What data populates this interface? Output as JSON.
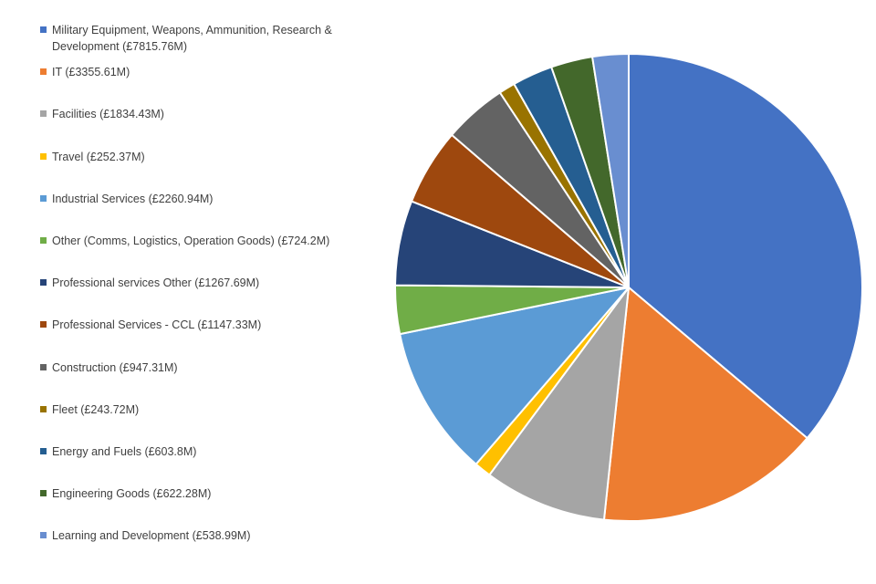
{
  "chart_data": {
    "type": "pie",
    "title": "",
    "legend_position": "left",
    "slices": [
      {
        "label": "Military Equipment, Weapons, Ammunition, Research & Development (£7815.76M)",
        "value": 7815.76,
        "color": "#4472C4"
      },
      {
        "label": "IT (£3355.61M)",
        "value": 3355.61,
        "color": "#ED7D31"
      },
      {
        "label": "Facilities (£1834.43M)",
        "value": 1834.43,
        "color": "#A5A5A5"
      },
      {
        "label": "Travel (£252.37M)",
        "value": 252.37,
        "color": "#FFC000"
      },
      {
        "label": "Industrial Services (£2260.94M)",
        "value": 2260.94,
        "color": "#5B9BD5"
      },
      {
        "label": "Other (Comms, Logistics, Operation Goods) (£724.2M)",
        "value": 724.2,
        "color": "#70AD47"
      },
      {
        "label": "Professional services Other (£1267.69M)",
        "value": 1267.69,
        "color": "#264478"
      },
      {
        "label": "Professional Services - CCL (£1147.33M)",
        "value": 1147.33,
        "color": "#9E480E"
      },
      {
        "label": "Construction (£947.31M)",
        "value": 947.31,
        "color": "#636363"
      },
      {
        "label": "Fleet (£243.72M)",
        "value": 243.72,
        "color": "#997300"
      },
      {
        "label": "Energy and Fuels (£603.8M)",
        "value": 603.8,
        "color": "#255E91"
      },
      {
        "label": "Engineering Goods (£622.28M)",
        "value": 622.28,
        "color": "#43682B"
      },
      {
        "label": "Learning and Development (£538.99M)",
        "value": 538.99,
        "color": "#698ED0"
      }
    ]
  }
}
